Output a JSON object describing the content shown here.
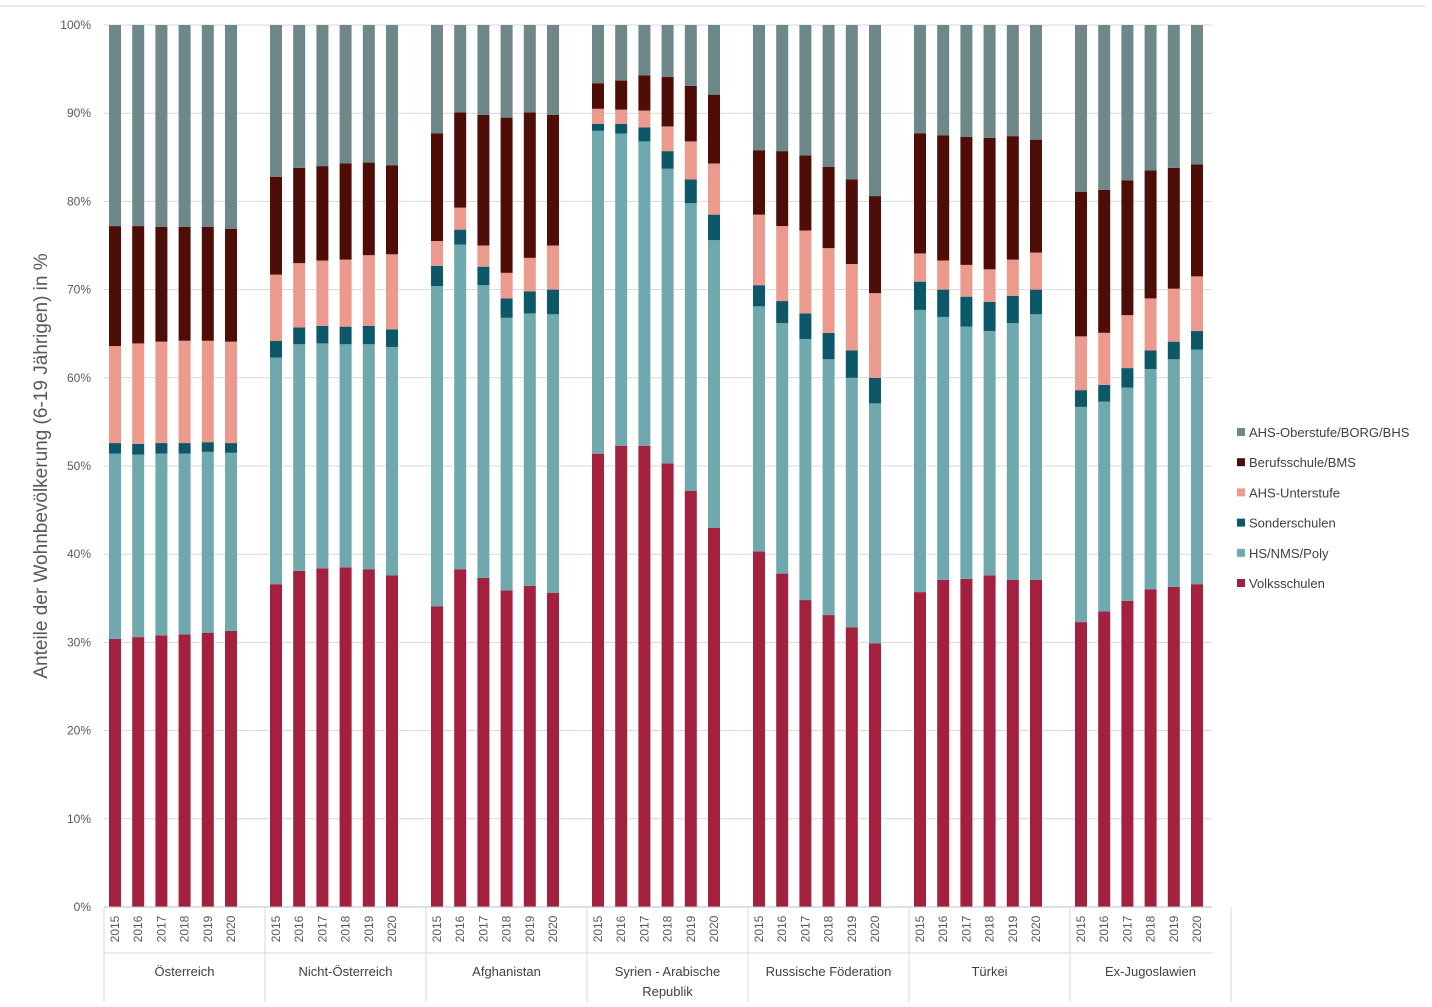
{
  "chart_data": {
    "type": "bar",
    "stacked": true,
    "ylabel": "Anteile der Wohnbevölkerung (6-19 Jährigen) in %",
    "xlabel": "",
    "title": "",
    "ylim": [
      0,
      100
    ],
    "y_ticks": [
      "0%",
      "10%",
      "20%",
      "30%",
      "40%",
      "50%",
      "60%",
      "70%",
      "80%",
      "90%",
      "100%"
    ],
    "grid": true,
    "legend_position": "right",
    "groups": [
      {
        "label": "Österreich",
        "label_lines": [
          "Österreich"
        ]
      },
      {
        "label": "Nicht-Österreich",
        "label_lines": [
          "Nicht-Österreich"
        ]
      },
      {
        "label": "Afghanistan",
        "label_lines": [
          "Afghanistan"
        ]
      },
      {
        "label": "Syrien - Arabische Republik",
        "label_lines": [
          "Syrien - Arabische",
          "Republik"
        ]
      },
      {
        "label": "Russische Föderation",
        "label_lines": [
          "Russische Föderation"
        ]
      },
      {
        "label": "Türkei",
        "label_lines": [
          "Türkei"
        ]
      },
      {
        "label": "Ex-Jugoslawien",
        "label_lines": [
          "Ex-Jugoslawien"
        ]
      }
    ],
    "years": [
      "2015",
      "2016",
      "2017",
      "2018",
      "2019",
      "2020"
    ],
    "series": [
      {
        "name": "Volksschulen",
        "color": "#A3213F",
        "values": [
          [
            30.4,
            30.6,
            30.8,
            30.9,
            31.1,
            31.3
          ],
          [
            36.6,
            38.1,
            38.4,
            38.5,
            38.3,
            37.6
          ],
          [
            34.1,
            38.3,
            37.3,
            35.9,
            36.4,
            35.6
          ],
          [
            51.4,
            52.3,
            52.3,
            50.3,
            47.2,
            43.0
          ],
          [
            40.3,
            37.8,
            34.8,
            33.1,
            31.7,
            29.9
          ],
          [
            35.7,
            37.1,
            37.2,
            37.6,
            37.1,
            37.1
          ],
          [
            32.3,
            33.5,
            34.7,
            36.0,
            36.3,
            36.6
          ]
        ]
      },
      {
        "name": "HS/NMS/Poly",
        "color": "#6FA9AE",
        "values": [
          [
            21.0,
            20.7,
            20.6,
            20.5,
            20.5,
            20.2
          ],
          [
            25.7,
            25.7,
            25.5,
            25.3,
            25.5,
            25.9
          ],
          [
            36.3,
            36.8,
            33.2,
            30.9,
            30.9,
            31.6
          ],
          [
            36.6,
            35.4,
            34.5,
            33.4,
            32.6,
            32.6
          ],
          [
            27.8,
            28.4,
            29.6,
            29.0,
            28.3,
            27.2
          ],
          [
            32.0,
            29.8,
            28.6,
            27.7,
            29.1,
            30.1
          ],
          [
            24.4,
            23.8,
            24.2,
            25.0,
            25.8,
            26.6
          ]
        ]
      },
      {
        "name": "Sonderschulen",
        "color": "#0D5868",
        "values": [
          [
            1.2,
            1.2,
            1.2,
            1.2,
            1.1,
            1.1
          ],
          [
            1.9,
            1.9,
            2.0,
            2.0,
            2.1,
            2.0
          ],
          [
            2.3,
            1.7,
            2.1,
            2.2,
            2.5,
            2.8
          ],
          [
            0.8,
            1.1,
            1.6,
            2.0,
            2.7,
            2.9
          ],
          [
            2.4,
            2.5,
            2.9,
            3.0,
            3.1,
            2.9
          ],
          [
            3.2,
            3.1,
            3.4,
            3.3,
            3.1,
            2.8
          ],
          [
            1.9,
            1.9,
            2.2,
            2.1,
            2.0,
            2.1
          ]
        ]
      },
      {
        "name": "AHS-Unterstufe",
        "color": "#ED9A8E",
        "values": [
          [
            11.0,
            11.4,
            11.5,
            11.6,
            11.5,
            11.5
          ],
          [
            7.5,
            7.3,
            7.4,
            7.6,
            8.0,
            8.5
          ],
          [
            2.8,
            2.5,
            2.4,
            2.9,
            3.8,
            5.0
          ],
          [
            1.7,
            1.6,
            1.9,
            2.8,
            4.3,
            5.8
          ],
          [
            8.0,
            8.5,
            9.4,
            9.6,
            9.8,
            9.6
          ],
          [
            3.2,
            3.3,
            3.6,
            3.7,
            4.1,
            4.2
          ],
          [
            6.1,
            5.9,
            6.0,
            5.9,
            6.0,
            6.2
          ]
        ]
      },
      {
        "name": "Berufsschule/BMS",
        "color": "#4E0D06",
        "values": [
          [
            13.6,
            13.3,
            13.0,
            12.9,
            12.9,
            12.8
          ],
          [
            11.1,
            10.8,
            10.7,
            10.9,
            10.5,
            10.1
          ],
          [
            12.2,
            10.8,
            14.8,
            17.6,
            16.5,
            14.8
          ],
          [
            2.9,
            3.3,
            4.0,
            5.6,
            6.3,
            7.8
          ],
          [
            7.3,
            8.5,
            8.5,
            9.2,
            9.6,
            11.0
          ],
          [
            13.6,
            14.2,
            14.5,
            14.9,
            14.0,
            12.8
          ],
          [
            16.4,
            16.2,
            15.3,
            14.5,
            13.7,
            12.7
          ]
        ]
      },
      {
        "name": "AHS-Oberstufe/BORG/BHS",
        "color": "#6E8789",
        "values": [
          [
            22.8,
            22.8,
            22.9,
            22.9,
            22.9,
            23.1
          ],
          [
            17.2,
            16.2,
            16.0,
            15.7,
            15.6,
            15.9
          ],
          [
            12.3,
            9.9,
            10.2,
            10.5,
            9.9,
            10.2
          ],
          [
            6.6,
            6.3,
            5.7,
            5.9,
            6.9,
            7.9
          ],
          [
            14.2,
            14.3,
            14.8,
            16.1,
            17.5,
            19.4
          ],
          [
            12.3,
            12.5,
            12.7,
            12.8,
            12.6,
            13.0
          ],
          [
            18.9,
            18.7,
            17.6,
            16.5,
            16.2,
            15.8
          ]
        ]
      }
    ]
  }
}
